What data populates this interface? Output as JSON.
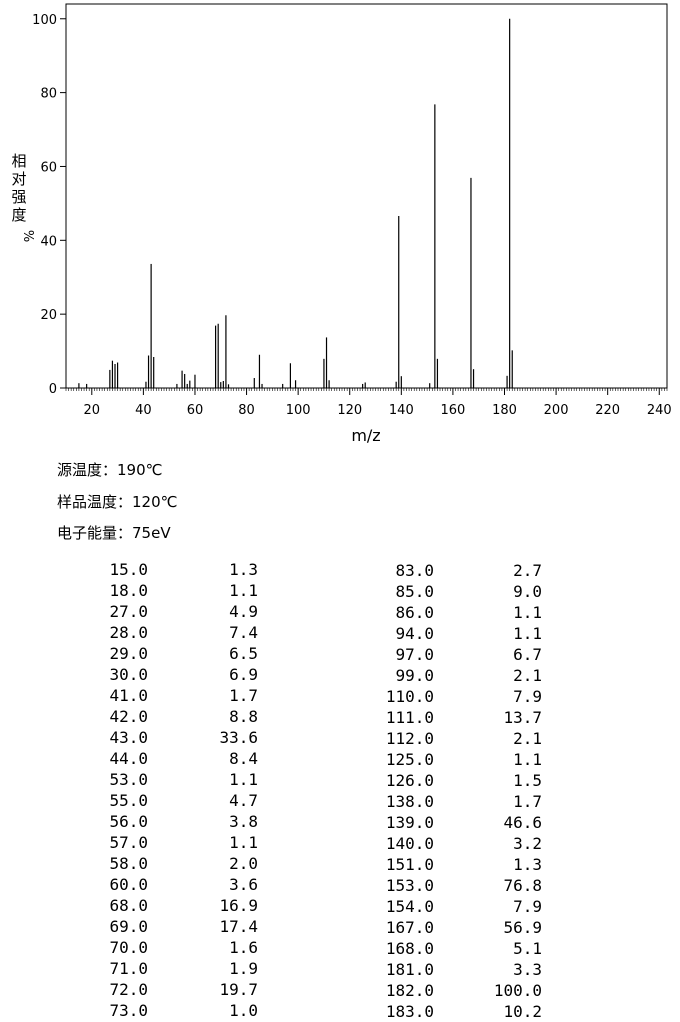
{
  "chart_data": {
    "type": "bar",
    "xlabel": "m/z",
    "ylabel_chars": [
      "相",
      "对",
      "强",
      "度"
    ],
    "ylabel_unit": "%",
    "xlim": [
      10,
      243
    ],
    "ylim": [
      0,
      104
    ],
    "xticks": [
      20,
      40,
      60,
      80,
      100,
      120,
      140,
      160,
      180,
      200,
      220,
      240
    ],
    "yticks": [
      0,
      20,
      40,
      60,
      80,
      100
    ],
    "grid": false,
    "peaks": {
      "x": [
        15,
        18,
        27,
        28,
        29,
        30,
        41,
        42,
        43,
        44,
        53,
        55,
        56,
        57,
        58,
        60,
        68,
        69,
        70,
        71,
        72,
        73,
        83,
        85,
        86,
        94,
        97,
        99,
        110,
        111,
        112,
        125,
        126,
        138,
        139,
        140,
        151,
        153,
        154,
        167,
        168,
        181,
        182,
        183
      ],
      "y": [
        1.3,
        1.1,
        4.9,
        7.4,
        6.5,
        6.9,
        1.7,
        8.8,
        33.6,
        8.4,
        1.1,
        4.7,
        3.8,
        1.1,
        2.0,
        3.6,
        16.9,
        17.4,
        1.6,
        1.9,
        19.7,
        1.0,
        2.7,
        9.0,
        1.1,
        1.1,
        6.7,
        2.1,
        7.9,
        13.7,
        2.1,
        1.1,
        1.5,
        1.7,
        46.6,
        3.2,
        1.3,
        76.8,
        7.9,
        56.9,
        5.1,
        3.3,
        100.0,
        10.2
      ]
    }
  },
  "conditions": {
    "source_temp": "源温度：190℃",
    "sample_temp": "样品温度：120℃",
    "electron_energy": "电子能量：75eV"
  },
  "table": {
    "left_mz": [
      "15.0",
      "18.0",
      "27.0",
      "28.0",
      "29.0",
      "30.0",
      "41.0",
      "42.0",
      "43.0",
      "44.0",
      "53.0",
      "55.0",
      "56.0",
      "57.0",
      "58.0",
      "60.0",
      "68.0",
      "69.0",
      "70.0",
      "71.0",
      "72.0",
      "73.0"
    ],
    "left_int": [
      "1.3",
      "1.1",
      "4.9",
      "7.4",
      "6.5",
      "6.9",
      "1.7",
      "8.8",
      "33.6",
      "8.4",
      "1.1",
      "4.7",
      "3.8",
      "1.1",
      "2.0",
      "3.6",
      "16.9",
      "17.4",
      "1.6",
      "1.9",
      "19.7",
      "1.0"
    ],
    "right_mz": [
      "83.0",
      "85.0",
      "86.0",
      "94.0",
      "97.0",
      "99.0",
      "110.0",
      "111.0",
      "112.0",
      "125.0",
      "126.0",
      "138.0",
      "139.0",
      "140.0",
      "151.0",
      "153.0",
      "154.0",
      "167.0",
      "168.0",
      "181.0",
      "182.0",
      "183.0"
    ],
    "right_int": [
      "2.7",
      "9.0",
      "1.1",
      "1.1",
      "6.7",
      "2.1",
      "7.9",
      "13.7",
      "2.1",
      "1.1",
      "1.5",
      "1.7",
      "46.6",
      "3.2",
      "1.3",
      "76.8",
      "7.9",
      "56.9",
      "5.1",
      "3.3",
      "100.0",
      "10.2"
    ]
  }
}
